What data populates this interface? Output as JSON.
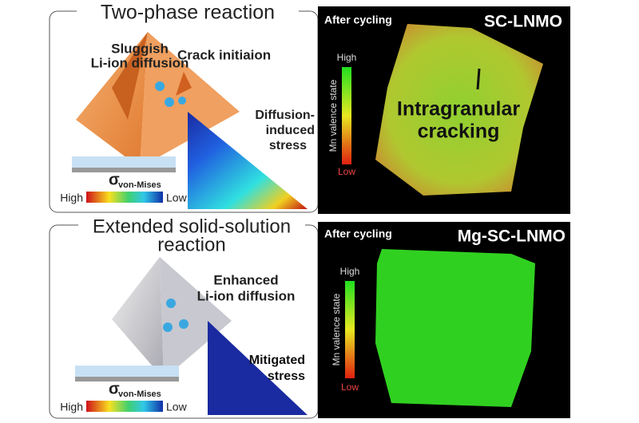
{
  "top": {
    "left": {
      "title": "Two-phase reaction",
      "diffusion_label": [
        "Sluggish",
        "Li-ion diffusion"
      ],
      "crack_label": "Crack initiaion",
      "stress_label": [
        "Diffusion-",
        "induced",
        "stress"
      ],
      "colorbar": {
        "symbol": "σ",
        "subscript": "von-Mises",
        "high": "High",
        "low": "Low"
      }
    },
    "right": {
      "caption": "After cycling",
      "sample": "SC-LNMO",
      "colorbar": {
        "high": "High",
        "axis": "Mn valence state",
        "low": "Low"
      },
      "annotation": [
        "Intragranular",
        "cracking"
      ]
    }
  },
  "bottom": {
    "left": {
      "title": [
        "Extended solid-solution",
        "reaction"
      ],
      "diffusion_label": [
        "Enhanced",
        "Li-ion diffusion"
      ],
      "stress_label": [
        "Mitigated",
        "stress"
      ],
      "colorbar": {
        "symbol": "σ",
        "subscript": "von-Mises",
        "high": "High",
        "low": "Low"
      }
    },
    "right": {
      "caption": "After cycling",
      "sample": "Mg-SC-LNMO",
      "colorbar": {
        "high": "High",
        "axis": "Mn valence state",
        "low": "Low"
      }
    }
  }
}
